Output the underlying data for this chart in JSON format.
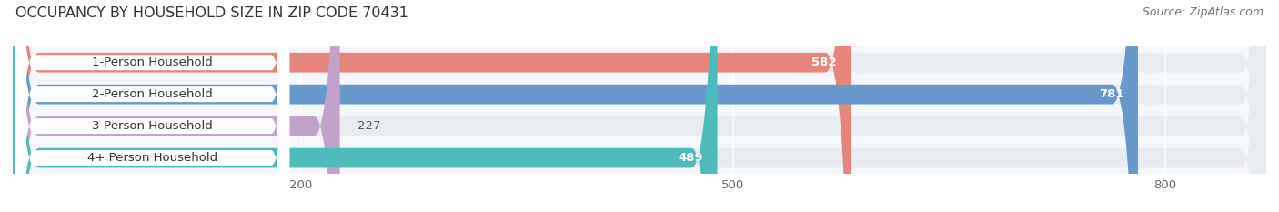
{
  "title": "OCCUPANCY BY HOUSEHOLD SIZE IN ZIP CODE 70431",
  "source": "Source: ZipAtlas.com",
  "categories": [
    "1-Person Household",
    "2-Person Household",
    "3-Person Household",
    "4+ Person Household"
  ],
  "values": [
    582,
    781,
    227,
    489
  ],
  "bar_colors": [
    "#E8857A",
    "#6699CC",
    "#C4A0CC",
    "#4DBBBB"
  ],
  "track_color": "#E8ECF0",
  "label_bg_color": "#FFFFFF",
  "background_color": "#FFFFFF",
  "plot_bg_color": "#F5F7FA",
  "xlim": [
    0,
    870
  ],
  "xticks": [
    200,
    500,
    800
  ],
  "title_fontsize": 11.5,
  "source_fontsize": 9,
  "label_fontsize": 9.5,
  "value_fontsize": 9.5,
  "tick_fontsize": 9.5,
  "bar_height": 0.62,
  "figsize": [
    14.06,
    2.33
  ],
  "dpi": 100
}
